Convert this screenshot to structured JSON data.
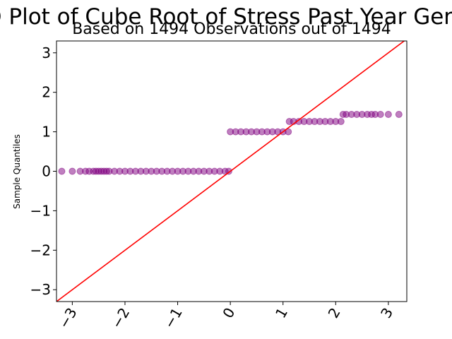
{
  "chart_data": {
    "type": "scatter",
    "title": "Q-Q Plot of Cube Root of Stress Past Year Gender",
    "subtitle": "Based on 1494 Observations out of 1494",
    "xlabel": "",
    "ylabel": "Sample Quantiles",
    "xlim": [
      -3.3,
      3.35
    ],
    "ylim": [
      -3.3,
      3.3
    ],
    "grid": false,
    "legend": "none",
    "xticks": [
      -3,
      -2,
      -1,
      0,
      1,
      2,
      3
    ],
    "xtick_labels": [
      "−3",
      "−2",
      "−1",
      "0",
      "1",
      "2",
      "3"
    ],
    "yticks": [
      -3,
      -2,
      -1,
      0,
      1,
      2,
      3
    ],
    "ytick_labels": [
      "−3",
      "−2",
      "−1",
      "0",
      "1",
      "2",
      "3"
    ],
    "colors": {
      "points": "#800080",
      "reference_line": "#ff0000"
    },
    "reference_line": {
      "x": [
        -3.3,
        3.35
      ],
      "y": [
        -3.3,
        3.35
      ]
    },
    "series": [
      {
        "x": [
          -3.2,
          -3.0,
          -2.85,
          -2.75,
          -2.68,
          -2.6,
          -2.55,
          -2.5,
          -2.45,
          -2.4,
          -2.35,
          -2.3,
          -2.2,
          -2.1,
          -2.0,
          -1.9,
          -1.8,
          -1.7,
          -1.6,
          -1.5,
          -1.4,
          -1.3,
          -1.2,
          -1.1,
          -1.0,
          -0.9,
          -0.8,
          -0.7,
          -0.6,
          -0.5,
          -0.4,
          -0.3,
          -0.2,
          -0.1,
          -0.03,
          0.0,
          0.1,
          0.2,
          0.3,
          0.4,
          0.5,
          0.6,
          0.7,
          0.8,
          0.9,
          1.0,
          1.1,
          1.12,
          1.2,
          1.3,
          1.4,
          1.5,
          1.6,
          1.7,
          1.8,
          1.9,
          2.0,
          2.1,
          2.14,
          2.2,
          2.3,
          2.4,
          2.5,
          2.6,
          2.68,
          2.75,
          2.85,
          3.0,
          3.2
        ],
        "y": [
          0,
          0,
          0,
          0,
          0,
          0,
          0,
          0,
          0,
          0,
          0,
          0,
          0,
          0,
          0,
          0,
          0,
          0,
          0,
          0,
          0,
          0,
          0,
          0,
          0,
          0,
          0,
          0,
          0,
          0,
          0,
          0,
          0,
          0,
          0,
          1,
          1,
          1,
          1,
          1,
          1,
          1,
          1,
          1,
          1,
          1,
          1,
          1.26,
          1.26,
          1.26,
          1.26,
          1.26,
          1.26,
          1.26,
          1.26,
          1.26,
          1.26,
          1.26,
          1.44,
          1.44,
          1.44,
          1.44,
          1.44,
          1.44,
          1.44,
          1.44,
          1.44,
          1.44,
          1.44
        ]
      }
    ]
  }
}
